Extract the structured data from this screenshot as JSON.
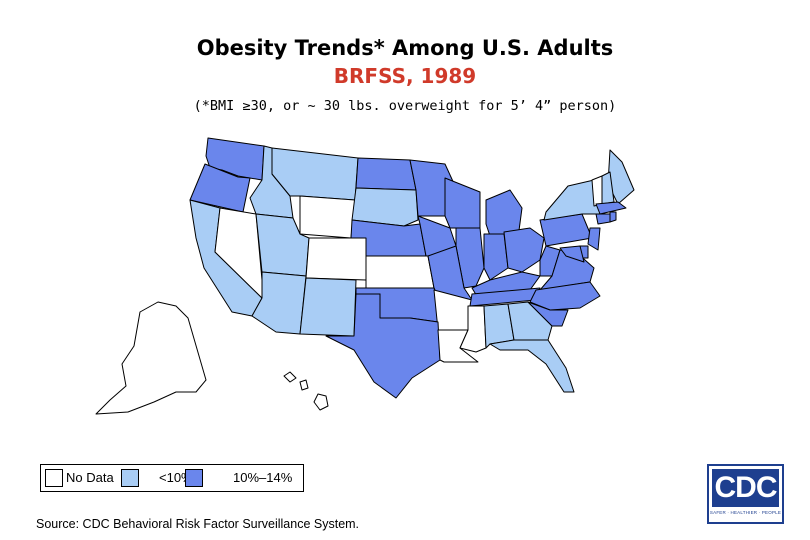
{
  "header": {
    "title": "Obesity Trends* Among U.S. Adults",
    "subtitle": "BRFSS, 1989",
    "note": "(*BMI ≥30, or ~ 30 lbs. overweight for 5’ 4” person)"
  },
  "legend": {
    "items": [
      {
        "label": "No Data",
        "color": "#ffffff"
      },
      {
        "label": "<10%",
        "color": "#a9cdf5"
      },
      {
        "label": "10%–14%",
        "color": "#6a86ec"
      }
    ]
  },
  "colors": {
    "no_data": "#ffffff",
    "low": "#a9cdf5",
    "mid": "#6a86ec",
    "border": "#000000",
    "subtitle": "#d03a2a",
    "logo": "#1e3f8f"
  },
  "state_categories": {
    "WA": "mid",
    "OR": "mid",
    "ID": "low",
    "MT": "low",
    "WY": "no_data",
    "ND": "mid",
    "SD": "low",
    "MN": "mid",
    "WI": "mid",
    "MI": "mid",
    "CA": "low",
    "NV": "no_data",
    "UT": "low",
    "CO": "no_data",
    "NE": "mid",
    "IA": "mid",
    "IL": "mid",
    "IN": "mid",
    "OH": "mid",
    "PA": "mid",
    "NY": "low",
    "AZ": "low",
    "NM": "low",
    "KS": "no_data",
    "MO": "mid",
    "KY": "mid",
    "WV": "mid",
    "VA": "mid",
    "OK": "mid",
    "AR": "no_data",
    "TN": "mid",
    "NC": "mid",
    "TX": "mid",
    "LA": "no_data",
    "MS": "no_data",
    "AL": "low",
    "GA": "low",
    "SC": "mid",
    "FL": "low",
    "ME": "low",
    "VT": "no_data",
    "NH": "low",
    "MA": "mid",
    "CT": "mid",
    "RI": "mid",
    "NJ": "mid",
    "DE": "mid",
    "MD": "mid",
    "AK": "no_data",
    "HI": "no_data"
  },
  "source": "Source: CDC Behavioral Risk Factor Surveillance System.",
  "logo": {
    "text": "CDC",
    "tagline": "SAFER · HEALTHIER · PEOPLE"
  }
}
